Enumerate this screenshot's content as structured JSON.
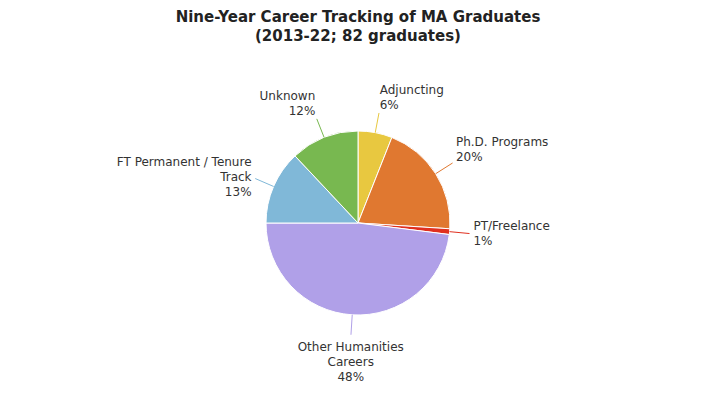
{
  "chart_data": {
    "type": "pie",
    "title": "Nine-Year Career Tracking of MA Graduates\n(2013-22; 82 graduates)",
    "categories": [
      "Adjuncting",
      "Ph.D. Programs",
      "PT/Freelance",
      "Other Humanities\nCareers",
      "FT Permanent / Tenure\nTrack",
      "Unknown"
    ],
    "values": [
      6,
      20,
      1,
      48,
      13,
      12
    ],
    "value_labels": [
      "6%",
      "20%",
      "1%",
      "48%",
      "13%",
      "12%"
    ],
    "colors": [
      "#E8C840",
      "#E07830",
      "#E03020",
      "#B0A0E8",
      "#80B8D8",
      "#78B850"
    ],
    "data_labels": true
  }
}
